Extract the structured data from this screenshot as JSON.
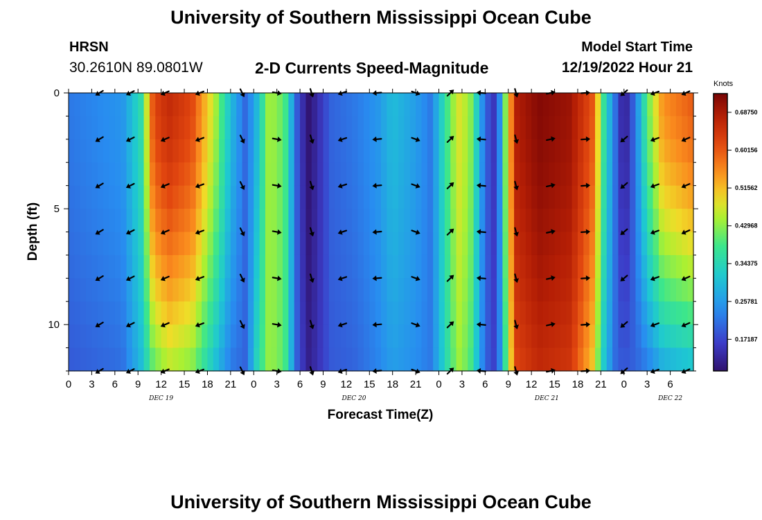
{
  "header": {
    "title": "University of Southern Mississippi Ocean Cube",
    "station": "HRSN",
    "coordinates": "30.2610N  89.0801W",
    "subtitle": "2-D Currents Speed-Magnitude",
    "model_start_label": "Model Start Time",
    "model_start_value": "12/19/2022 Hour 21"
  },
  "footer": {
    "title": "University of Southern Mississippi Ocean Cube"
  },
  "chart_data": {
    "type": "heatmap",
    "title": "2-D Currents Speed-Magnitude",
    "xlabel": "Forecast Time(Z)",
    "ylabel": "Depth (ft)",
    "x_hours_from_dec19_00": [
      0,
      81
    ],
    "ylim": [
      0,
      12
    ],
    "y_ticks": [
      0,
      5,
      10
    ],
    "x_tick_labels": [
      "0",
      "3",
      "6",
      "9",
      "12",
      "15",
      "18",
      "21",
      "0",
      "3",
      "6",
      "9",
      "12",
      "15",
      "18",
      "21",
      "0",
      "3",
      "6",
      "9",
      "12",
      "15",
      "18",
      "21",
      "0",
      "3",
      "6"
    ],
    "day_labels": [
      {
        "label": "DEC 19",
        "hour": 12
      },
      {
        "label": "DEC 20",
        "hour": 37
      },
      {
        "label": "DEC 21",
        "hour": 62
      },
      {
        "label": "DEC 22",
        "hour": 78
      }
    ],
    "colorbar": {
      "units": "Knots",
      "min": 0.1,
      "max": 0.73,
      "labels": [
        "0.68750",
        "0.60156",
        "0.51562",
        "0.42968",
        "0.34375",
        "0.25781",
        "0.17187"
      ],
      "label_values": [
        0.6875,
        0.60156,
        0.51562,
        0.42968,
        0.34375,
        0.25781,
        0.17187
      ]
    },
    "speed_surface_keyframes": [
      {
        "hour": 0,
        "surface": 0.22,
        "bottom": 0.19
      },
      {
        "hour": 7,
        "surface": 0.25,
        "bottom": 0.21
      },
      {
        "hour": 9.5,
        "surface": 0.36,
        "bottom": 0.3
      },
      {
        "hour": 11,
        "surface": 0.62,
        "bottom": 0.4
      },
      {
        "hour": 13,
        "surface": 0.66,
        "bottom": 0.45
      },
      {
        "hour": 16,
        "surface": 0.62,
        "bottom": 0.42
      },
      {
        "hour": 19,
        "surface": 0.45,
        "bottom": 0.3
      },
      {
        "hour": 21,
        "surface": 0.3,
        "bottom": 0.22
      },
      {
        "hour": 23,
        "surface": 0.2,
        "bottom": 0.2
      },
      {
        "hour": 24.5,
        "surface": 0.3,
        "bottom": 0.35
      },
      {
        "hour": 26,
        "surface": 0.45,
        "bottom": 0.44
      },
      {
        "hour": 28,
        "surface": 0.4,
        "bottom": 0.4
      },
      {
        "hour": 29.5,
        "surface": 0.2,
        "bottom": 0.2
      },
      {
        "hour": 31,
        "surface": 0.1,
        "bottom": 0.12
      },
      {
        "hour": 32,
        "surface": 0.13,
        "bottom": 0.14
      },
      {
        "hour": 34,
        "surface": 0.2,
        "bottom": 0.19
      },
      {
        "hour": 37,
        "surface": 0.22,
        "bottom": 0.2
      },
      {
        "hour": 40,
        "surface": 0.25,
        "bottom": 0.23
      },
      {
        "hour": 42,
        "surface": 0.3,
        "bottom": 0.26
      },
      {
        "hour": 45,
        "surface": 0.26,
        "bottom": 0.24
      },
      {
        "hour": 47,
        "surface": 0.22,
        "bottom": 0.22
      },
      {
        "hour": 49,
        "surface": 0.38,
        "bottom": 0.35
      },
      {
        "hour": 50.5,
        "surface": 0.48,
        "bottom": 0.44
      },
      {
        "hour": 52,
        "surface": 0.44,
        "bottom": 0.4
      },
      {
        "hour": 54,
        "surface": 0.2,
        "bottom": 0.2
      },
      {
        "hour": 55.5,
        "surface": 0.14,
        "bottom": 0.16
      },
      {
        "hour": 56.5,
        "surface": 0.4,
        "bottom": 0.35
      },
      {
        "hour": 58,
        "surface": 0.68,
        "bottom": 0.62
      },
      {
        "hour": 61,
        "surface": 0.72,
        "bottom": 0.66
      },
      {
        "hour": 65,
        "surface": 0.7,
        "bottom": 0.64
      },
      {
        "hour": 68,
        "surface": 0.6,
        "bottom": 0.5
      },
      {
        "hour": 69.5,
        "surface": 0.35,
        "bottom": 0.3
      },
      {
        "hour": 71,
        "surface": 0.2,
        "bottom": 0.2
      },
      {
        "hour": 72,
        "surface": 0.11,
        "bottom": 0.19
      },
      {
        "hour": 73.5,
        "surface": 0.22,
        "bottom": 0.2
      },
      {
        "hour": 75,
        "surface": 0.4,
        "bottom": 0.22
      },
      {
        "hour": 77,
        "surface": 0.55,
        "bottom": 0.27
      },
      {
        "hour": 81,
        "surface": 0.6,
        "bottom": 0.3
      }
    ],
    "vector_times": [
      4,
      8,
      12.5,
      17,
      22.5,
      27,
      31.5,
      35.5,
      40,
      45,
      49.5,
      53.5,
      58,
      62.5,
      67,
      72,
      76,
      80
    ],
    "vector_depths": [
      0,
      2,
      4,
      6,
      8,
      10,
      12
    ],
    "vector_direction_keyframes": [
      {
        "hour": 0,
        "deg": 215
      },
      {
        "hour": 10,
        "deg": 205
      },
      {
        "hour": 18,
        "deg": 200
      },
      {
        "hour": 21,
        "deg": 240
      },
      {
        "hour": 23,
        "deg": 315
      },
      {
        "hour": 27,
        "deg": 350
      },
      {
        "hour": 31,
        "deg": 300
      },
      {
        "hour": 35,
        "deg": 200
      },
      {
        "hour": 40,
        "deg": 185
      },
      {
        "hour": 45,
        "deg": 340
      },
      {
        "hour": 49,
        "deg": 20
      },
      {
        "hour": 52,
        "deg": 160
      },
      {
        "hour": 56,
        "deg": 200
      },
      {
        "hour": 60,
        "deg": 10
      },
      {
        "hour": 66,
        "deg": 15
      },
      {
        "hour": 70,
        "deg": 330
      },
      {
        "hour": 72,
        "deg": 220
      },
      {
        "hour": 76,
        "deg": 200
      },
      {
        "hour": 81,
        "deg": 205
      }
    ]
  }
}
